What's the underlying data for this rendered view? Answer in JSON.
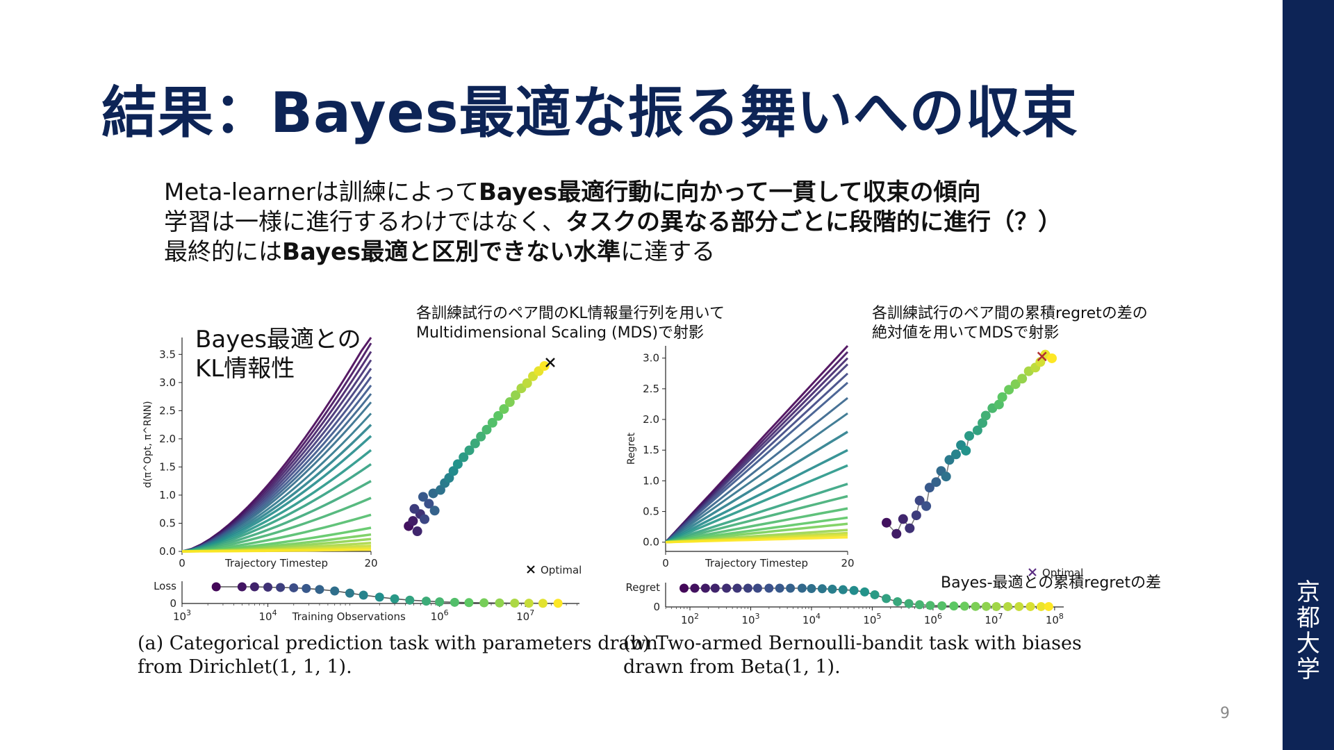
{
  "slide": {
    "title": "結果：Bayes最適な振る舞いへの収束",
    "page_number": "9",
    "university": [
      "京",
      "都",
      "大",
      "学"
    ]
  },
  "bullets": [
    {
      "pre": "Meta-learnerは訓練によって",
      "bold": "Bayes最適行動に向かって一貫して収束の傾向",
      "post": ""
    },
    {
      "pre": "学習は一様に進行するわけではなく、",
      "bold": "タスクの異なる部分ごとに段階的に進行（？）",
      "post": ""
    },
    {
      "pre": "最終的には",
      "bold": "Bayes最適と区別できない水準",
      "post": "に達する"
    }
  ],
  "annotations": {
    "kl_label_line1": "Bayes最適との",
    "kl_label_line2": "KL情報性",
    "mds_a_line1": "各訓練試行のペア間のKL情報量行列を用いて",
    "mds_a_line2": "Multidimensional Scaling (MDS)で射影",
    "mds_b_line1": "各訓練試行のペア間の累積regretの差の",
    "mds_b_line2": "絶対値を用いてMDSで射影",
    "regret_diff": "Bayes-最適との累積regretの差"
  },
  "captions": {
    "a_line1": "(a) Categorical prediction task with parameters drawn",
    "a_line2": "from Dirichlet(1, 1, 1).",
    "b_line1": "(b)  Two-armed  Bernoulli-bandit  task  with  biases",
    "b_line2": "drawn from Beta(1, 1)."
  },
  "chart_data": [
    {
      "id": "a_kl",
      "type": "line",
      "xlabel": "Trajectory Timestep",
      "ylabel": "d(π^Opt, π^RNN)",
      "xlim": [
        0,
        20
      ],
      "ylim": [
        0,
        3.8
      ],
      "xticks": [
        "0",
        "20"
      ],
      "yticks": [
        "0.0",
        "0.5",
        "1.0",
        "1.5",
        "2.0",
        "2.5",
        "3.0",
        "3.5"
      ],
      "final_values_at_20": [
        3.85,
        3.7,
        3.55,
        3.4,
        3.25,
        3.1,
        2.95,
        2.8,
        2.65,
        2.45,
        2.25,
        2.05,
        1.8,
        1.55,
        1.25,
        0.95,
        0.65,
        0.42,
        0.3,
        0.22,
        0.15,
        0.1,
        0.06,
        0.03
      ],
      "colormap": "viridis"
    },
    {
      "id": "a_mds",
      "type": "scatter",
      "legend": "Optimal",
      "optimal": [
        1.0,
        1.0
      ],
      "points": [
        [
          0.02,
          0.05
        ],
        [
          0.05,
          0.08
        ],
        [
          0.08,
          0.02
        ],
        [
          0.1,
          0.12
        ],
        [
          0.06,
          0.15
        ],
        [
          0.13,
          0.09
        ],
        [
          0.16,
          0.18
        ],
        [
          0.12,
          0.22
        ],
        [
          0.2,
          0.14
        ],
        [
          0.19,
          0.24
        ],
        [
          0.24,
          0.26
        ],
        [
          0.27,
          0.3
        ],
        [
          0.3,
          0.33
        ],
        [
          0.33,
          0.37
        ],
        [
          0.36,
          0.41
        ],
        [
          0.4,
          0.45
        ],
        [
          0.44,
          0.49
        ],
        [
          0.48,
          0.53
        ],
        [
          0.52,
          0.57
        ],
        [
          0.56,
          0.61
        ],
        [
          0.6,
          0.65
        ],
        [
          0.64,
          0.69
        ],
        [
          0.68,
          0.73
        ],
        [
          0.72,
          0.77
        ],
        [
          0.76,
          0.81
        ],
        [
          0.8,
          0.85
        ],
        [
          0.84,
          0.88
        ],
        [
          0.88,
          0.92
        ],
        [
          0.92,
          0.95
        ],
        [
          0.96,
          0.98
        ]
      ]
    },
    {
      "id": "a_loss",
      "type": "scatter",
      "xlabel": "Training Observations",
      "ylabel": "Loss",
      "xscale": "log",
      "xticks": [
        "10^3",
        "10^4",
        "10^6",
        "10^7"
      ],
      "yticks": [
        "0"
      ],
      "points_x": [
        2500,
        5000,
        7000,
        10000,
        14000,
        20000,
        28000,
        40000,
        60000,
        90000,
        130000,
        200000,
        300000,
        450000,
        700000,
        1000000,
        1500000,
        2200000,
        3300000,
        5000000,
        7500000,
        11000000,
        16000000,
        24000000
      ],
      "points_y": [
        1.0,
        1.0,
        1.0,
        0.98,
        0.96,
        0.94,
        0.9,
        0.84,
        0.75,
        0.62,
        0.5,
        0.38,
        0.28,
        0.2,
        0.14,
        0.1,
        0.07,
        0.05,
        0.04,
        0.03,
        0.02,
        0.015,
        0.01,
        0.01
      ]
    },
    {
      "id": "b_regret",
      "type": "line",
      "xlabel": "Trajectory Timestep",
      "ylabel": "Regret",
      "xlim": [
        0,
        20
      ],
      "ylim": [
        -0.15,
        3.2
      ],
      "xticks": [
        "0",
        "20"
      ],
      "yticks": [
        "0.0",
        "0.5",
        "1.0",
        "1.5",
        "2.0",
        "2.5",
        "3.0"
      ],
      "final_values_at_20": [
        3.2,
        3.1,
        3.0,
        2.9,
        2.75,
        2.6,
        2.35,
        2.1,
        1.8,
        1.5,
        1.25,
        0.95,
        0.75,
        0.55,
        0.4,
        0.3,
        0.2,
        0.15,
        0.12,
        0.08
      ],
      "colormap": "viridis"
    },
    {
      "id": "b_mds",
      "type": "scatter",
      "legend": "Optimal",
      "optimal": [
        0.94,
        0.98
      ],
      "points": [
        [
          0.0,
          0.08
        ],
        [
          0.06,
          0.02
        ],
        [
          0.1,
          0.1
        ],
        [
          0.14,
          0.05
        ],
        [
          0.18,
          0.12
        ],
        [
          0.2,
          0.2
        ],
        [
          0.24,
          0.17
        ],
        [
          0.26,
          0.27
        ],
        [
          0.3,
          0.3
        ],
        [
          0.33,
          0.36
        ],
        [
          0.36,
          0.33
        ],
        [
          0.38,
          0.42
        ],
        [
          0.42,
          0.45
        ],
        [
          0.45,
          0.5
        ],
        [
          0.48,
          0.47
        ],
        [
          0.5,
          0.55
        ],
        [
          0.55,
          0.58
        ],
        [
          0.58,
          0.62
        ],
        [
          0.6,
          0.66
        ],
        [
          0.64,
          0.7
        ],
        [
          0.68,
          0.72
        ],
        [
          0.7,
          0.76
        ],
        [
          0.74,
          0.8
        ],
        [
          0.78,
          0.83
        ],
        [
          0.82,
          0.86
        ],
        [
          0.86,
          0.9
        ],
        [
          0.9,
          0.92
        ],
        [
          0.93,
          0.95
        ],
        [
          0.96,
          0.99
        ],
        [
          1.0,
          0.97
        ]
      ]
    },
    {
      "id": "b_regret_training",
      "type": "scatter",
      "ylabel": "Regret",
      "xscale": "log",
      "xticks": [
        "10^2",
        "10^3",
        "10^4",
        "10^5",
        "10^6",
        "10^7",
        "10^8"
      ],
      "yticks": [
        "0"
      ],
      "points_x": [
        80,
        120,
        180,
        260,
        400,
        600,
        900,
        1300,
        2000,
        3000,
        4500,
        7000,
        10000,
        15000,
        22000,
        33000,
        50000,
        75000,
        110000,
        170000,
        260000,
        400000,
        600000,
        900000,
        1400000,
        2200000,
        3300000,
        5000000,
        7500000,
        11000000,
        17000000,
        26000000,
        40000000,
        60000000,
        80000000
      ],
      "points_y": [
        1.0,
        1.0,
        1.0,
        1.0,
        1.0,
        1.0,
        1.0,
        1.0,
        1.0,
        1.0,
        1.0,
        1.0,
        0.98,
        0.97,
        0.95,
        0.92,
        0.88,
        0.8,
        0.65,
        0.45,
        0.28,
        0.18,
        0.12,
        0.08,
        0.06,
        0.05,
        0.04,
        0.03,
        0.03,
        0.02,
        0.02,
        0.02,
        0.02,
        0.02,
        0.02
      ]
    }
  ]
}
